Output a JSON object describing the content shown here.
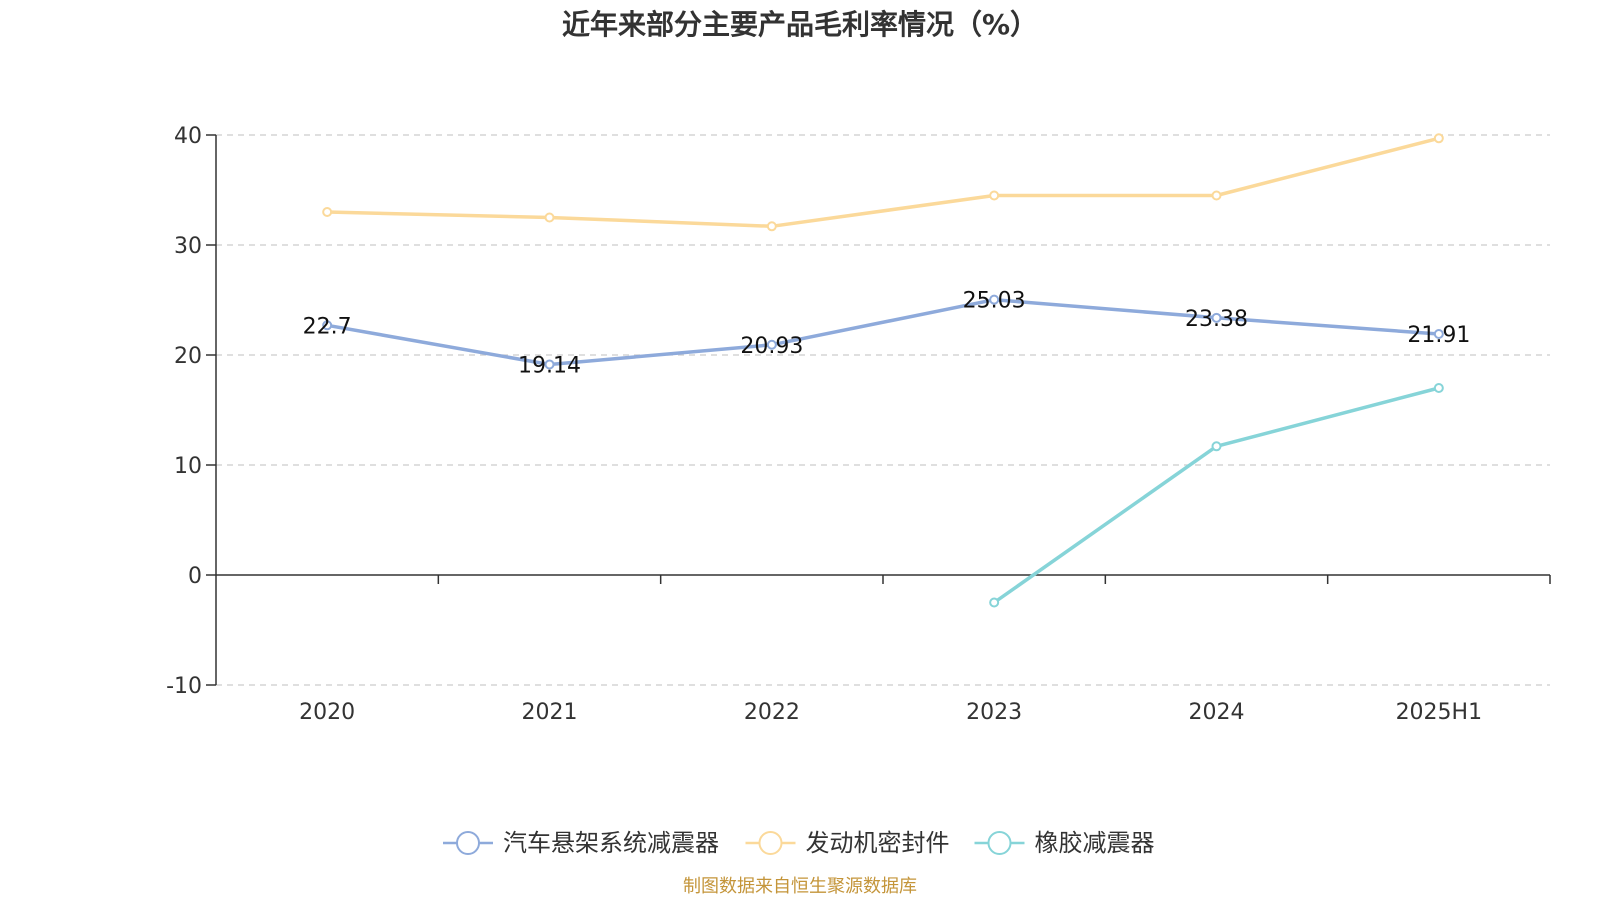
{
  "chart_data": {
    "type": "line",
    "title": "近年来部分主要产品毛利率情况（%）",
    "categories": [
      "2020",
      "2021",
      "2022",
      "2023",
      "2024",
      "2025H1"
    ],
    "ylim": [
      -10,
      40
    ],
    "yticks": [
      40,
      30,
      20,
      10,
      0,
      -10
    ],
    "grid": true,
    "legend_position": "bottom",
    "series": [
      {
        "name": "汽车悬架系统减震器",
        "color": "#8eaadb",
        "values": [
          22.7,
          19.14,
          20.93,
          25.03,
          23.38,
          21.91
        ],
        "labels": [
          "22.7",
          "19.14",
          "20.93",
          "25.03",
          "23.38",
          "21.91"
        ]
      },
      {
        "name": "发动机密封件",
        "color": "#fbd99a",
        "values": [
          33.0,
          32.5,
          31.7,
          34.5,
          34.5,
          39.7
        ],
        "labels": null
      },
      {
        "name": "橡胶减震器",
        "color": "#86d4d8",
        "values": [
          null,
          null,
          null,
          -2.5,
          11.7,
          17.0
        ],
        "labels": null
      }
    ]
  },
  "footer": {
    "source": "制图数据来自恒生聚源数据库",
    "source_color": "#c4953a"
  }
}
